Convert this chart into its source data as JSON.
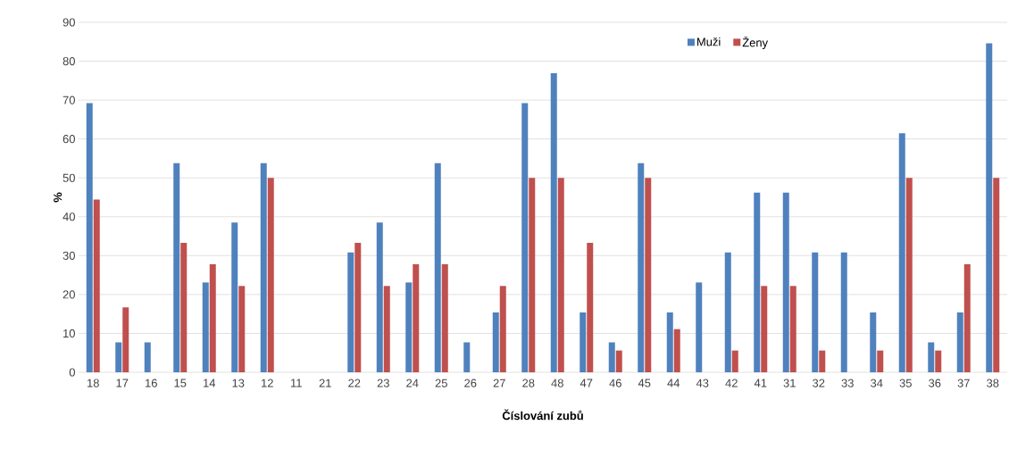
{
  "chart_data": {
    "type": "bar",
    "xlabel": "Číslování zubů",
    "ylabel": "%",
    "categories": [
      "18",
      "17",
      "16",
      "15",
      "14",
      "13",
      "12",
      "11",
      "21",
      "22",
      "23",
      "24",
      "25",
      "26",
      "27",
      "28",
      "48",
      "47",
      "46",
      "45",
      "44",
      "43",
      "42",
      "41",
      "31",
      "32",
      "33",
      "34",
      "35",
      "36",
      "37",
      "38"
    ],
    "series": [
      {
        "name": "Muži",
        "color": "#4f81bd",
        "values": [
          69.2,
          7.7,
          7.7,
          53.8,
          23.1,
          38.5,
          53.8,
          0,
          0,
          30.8,
          38.5,
          23.1,
          53.8,
          7.7,
          15.4,
          69.2,
          76.9,
          15.4,
          7.7,
          53.8,
          15.4,
          23.1,
          30.8,
          46.2,
          46.2,
          30.8,
          30.8,
          15.4,
          61.5,
          7.7,
          15.4,
          84.6
        ]
      },
      {
        "name": "Ženy",
        "color": "#c0504d",
        "values": [
          44.4,
          16.7,
          0,
          33.3,
          27.8,
          22.2,
          50,
          0,
          0,
          33.3,
          22.2,
          27.8,
          27.8,
          0,
          22.2,
          50,
          50,
          33.3,
          5.6,
          50,
          11.1,
          0,
          5.6,
          22.2,
          22.2,
          5.6,
          0,
          5.6,
          50,
          5.6,
          27.8,
          50
        ]
      }
    ],
    "ylim": [
      0,
      90
    ],
    "yticks": [
      0,
      10,
      20,
      30,
      40,
      50,
      60,
      70,
      80,
      90
    ],
    "grid": "y",
    "legend": "top right"
  }
}
